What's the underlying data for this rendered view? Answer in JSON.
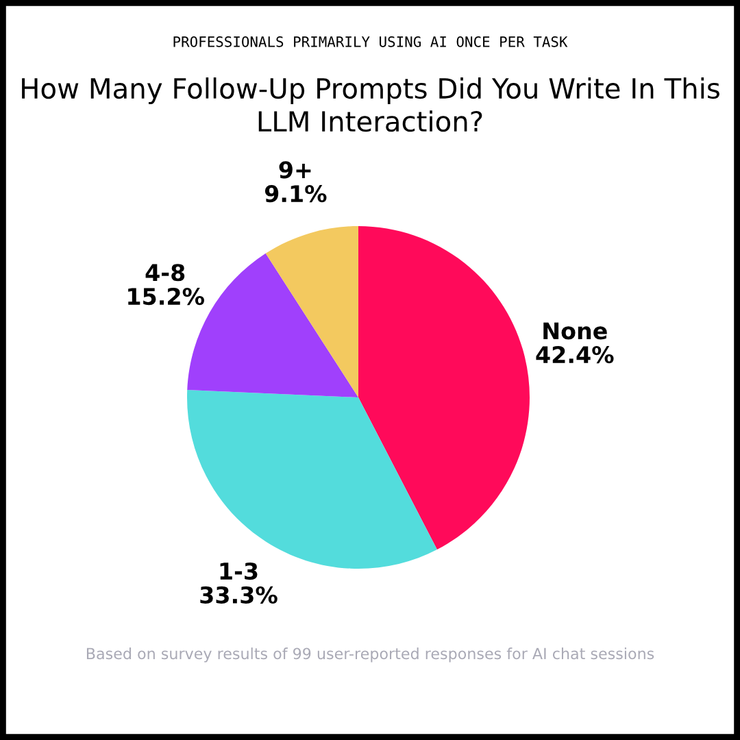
{
  "chart_data": {
    "type": "pie",
    "subtitle": "PROFESSIONALS PRIMARILY USING AI ONCE PER TASK",
    "title": "How Many Follow-Up Prompts Did You Write In This LLM Interaction?",
    "categories": [
      "None",
      "1-3",
      "4-8",
      "9+"
    ],
    "values": [
      42.4,
      33.3,
      15.2,
      9.1
    ],
    "value_labels": [
      "42.4%",
      "33.3%",
      "15.2%",
      "9.1%"
    ],
    "colors": [
      "#ff0a5a",
      "#53dcdc",
      "#a040fc",
      "#f3c95f"
    ],
    "legend": false,
    "annotations": [
      "Based on survey results of 99 user-reported responses for AI chat sessions"
    ]
  }
}
